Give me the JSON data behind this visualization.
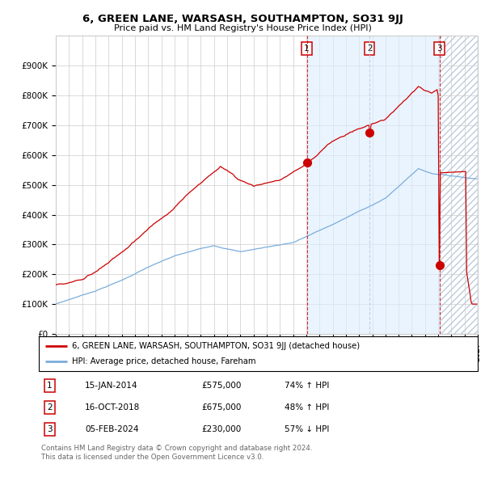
{
  "title": "6, GREEN LANE, WARSASH, SOUTHAMPTON, SO31 9JJ",
  "subtitle": "Price paid vs. HM Land Registry's House Price Index (HPI)",
  "legend_red": "6, GREEN LANE, WARSASH, SOUTHAMPTON, SO31 9JJ (detached house)",
  "legend_blue": "HPI: Average price, detached house, Fareham",
  "transactions": [
    {
      "label": "1",
      "date": "15-JAN-2014",
      "price": 575000,
      "pct": "74%",
      "dir": "↑"
    },
    {
      "label": "2",
      "date": "16-OCT-2018",
      "price": 675000,
      "pct": "48%",
      "dir": "↑"
    },
    {
      "label": "3",
      "date": "05-FEB-2024",
      "price": 230000,
      "pct": "57%",
      "dir": "↓"
    }
  ],
  "footnote1": "Contains HM Land Registry data © Crown copyright and database right 2024.",
  "footnote2": "This data is licensed under the Open Government Licence v3.0.",
  "ylim": [
    0,
    1000000
  ],
  "ytick_vals": [
    0,
    100000,
    200000,
    300000,
    400000,
    500000,
    600000,
    700000,
    800000,
    900000
  ],
  "ytick_labels": [
    "£0",
    "£100K",
    "£200K",
    "£300K",
    "£400K",
    "£500K",
    "£600K",
    "£700K",
    "£800K",
    "£900K"
  ],
  "xlim_start": 1995,
  "xlim_end": 2027,
  "red_color": "#cc0000",
  "blue_color": "#7aaddb",
  "bg_color": "#ffffff",
  "grid_color": "#cccccc",
  "shade_color": "#ddeeff",
  "hatch_color": "#bbccdd",
  "footnote_color": "#666666"
}
